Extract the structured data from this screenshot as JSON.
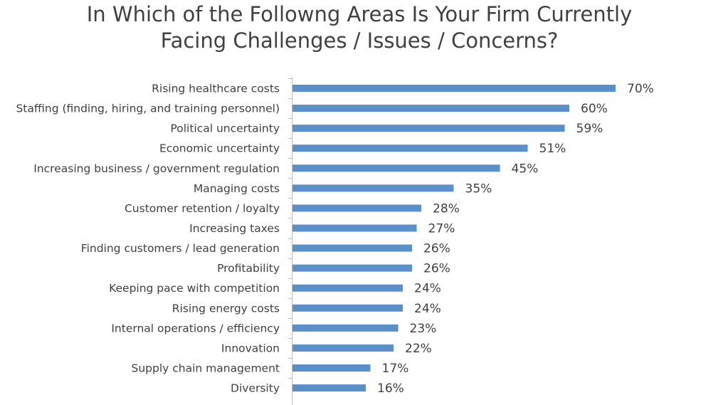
{
  "chart_data": {
    "type": "bar",
    "orientation": "horizontal",
    "title_lines": [
      "In Which of the Followng Areas Is Your Firm Currently",
      "Facing Challenges / Issues / Concerns?"
    ],
    "categories": [
      "Rising healthcare costs",
      "Staffing (finding, hiring, and training personnel)",
      "Political uncertainty",
      "Economic uncertainty",
      "Increasing business / government regulation",
      "Managing costs",
      "Customer retention / loyalty",
      "Increasing taxes",
      "Finding customers / lead generation",
      "Profitability",
      "Keeping pace with competition",
      "Rising energy costs",
      "Internal operations / efficiency",
      "Innovation",
      "Supply chain management",
      "Diversity"
    ],
    "values": [
      70,
      60,
      59,
      51,
      45,
      35,
      28,
      27,
      26,
      26,
      24,
      24,
      23,
      22,
      17,
      16
    ],
    "value_labels": [
      "70%",
      "60%",
      "59%",
      "51%",
      "45%",
      "35%",
      "28%",
      "27%",
      "26%",
      "26%",
      "24%",
      "24%",
      "23%",
      "22%",
      "17%",
      "16%"
    ],
    "bar_color": "#5b8fc9",
    "axis_color": "#bfbfbf",
    "text_color": "#404040",
    "xlim": [
      0,
      80
    ],
    "grid": false,
    "legend": "none"
  }
}
